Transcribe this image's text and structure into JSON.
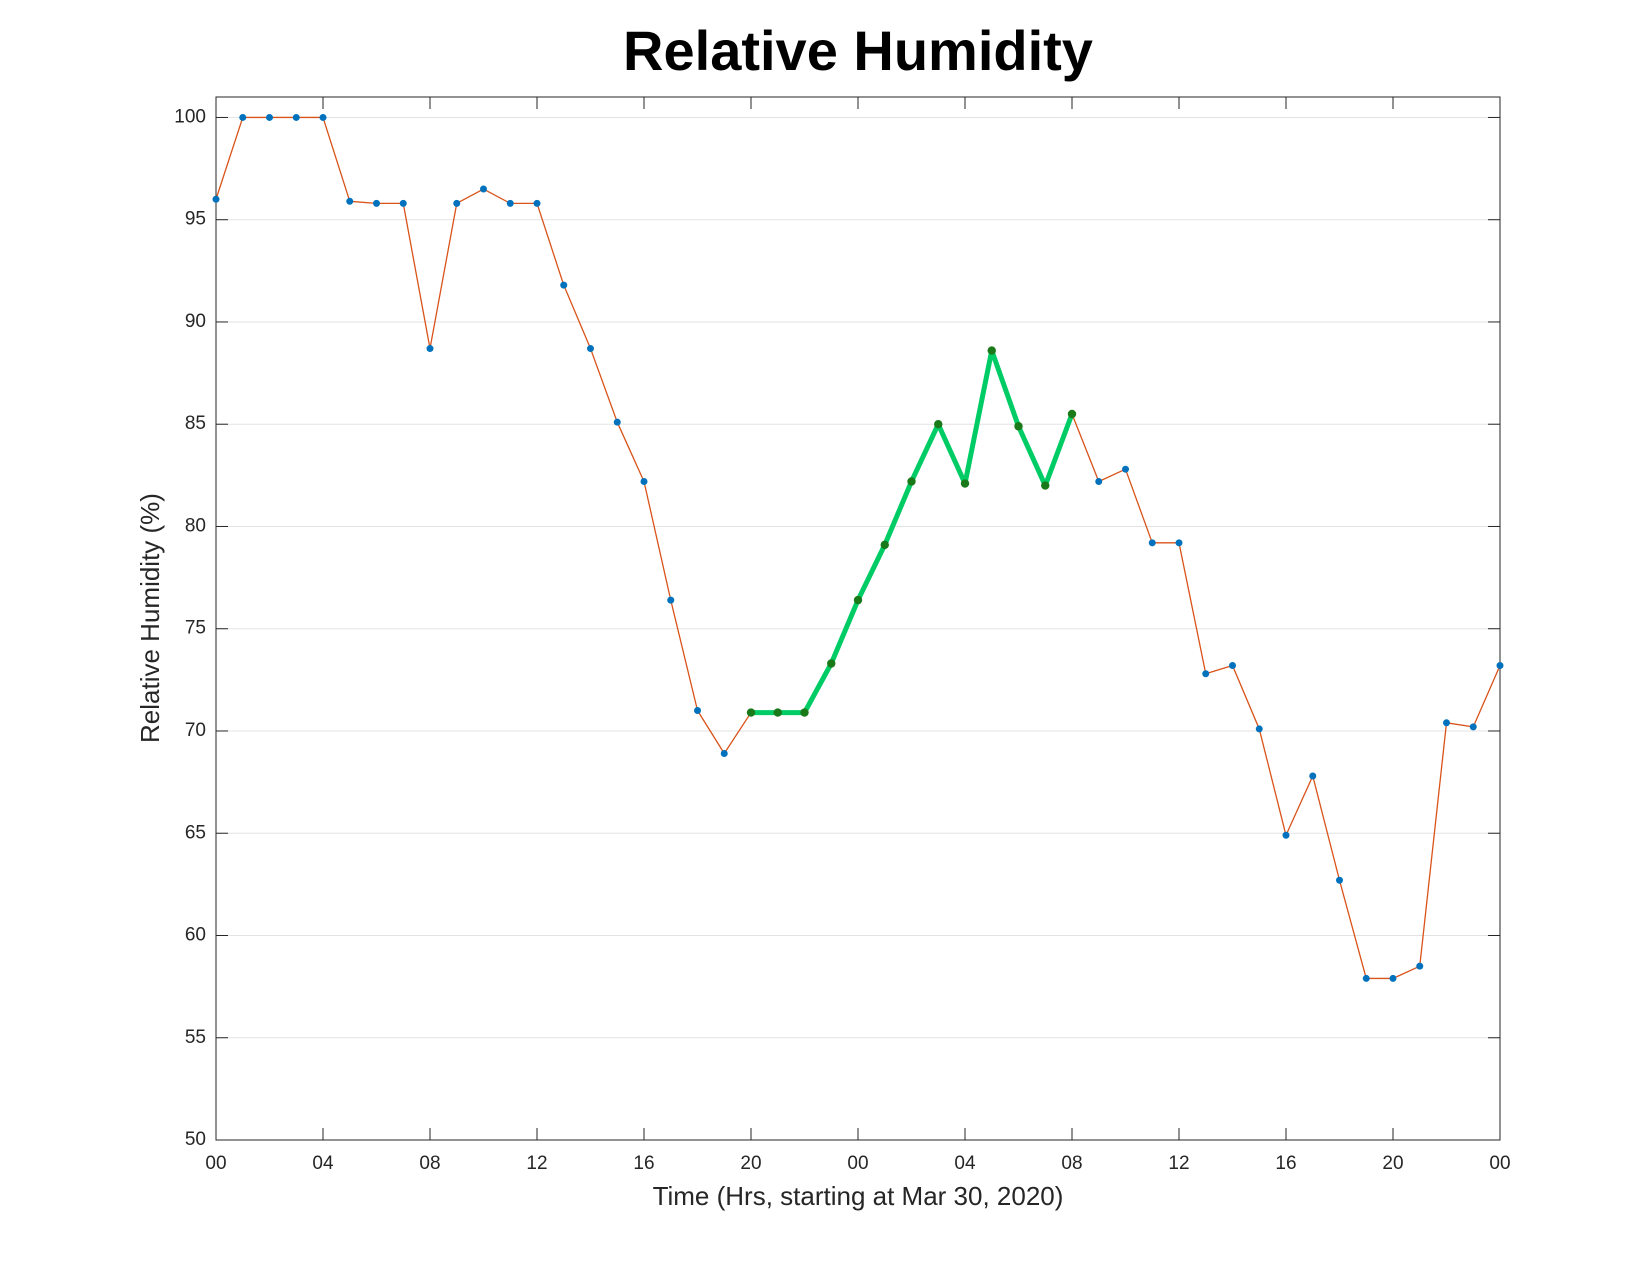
{
  "chart_data": {
    "type": "line",
    "title": "Relative Humidity",
    "xlabel": "Time (Hrs, starting at Mar 30, 2020)",
    "ylabel": "Relative Humidity (%)",
    "x": [
      0,
      1,
      2,
      3,
      4,
      5,
      6,
      7,
      8,
      9,
      10,
      11,
      12,
      13,
      14,
      15,
      16,
      17,
      18,
      19,
      20,
      21,
      22,
      23,
      24,
      25,
      26,
      27,
      28,
      29,
      30,
      31,
      32,
      33,
      34,
      35,
      36,
      37,
      38,
      39,
      40,
      41,
      42,
      43,
      44,
      45,
      46,
      47,
      48
    ],
    "series": [
      {
        "color": "#d95319",
        "marker_color": "#0072bd",
        "values": [
          96,
          100,
          100,
          100,
          100,
          95.9,
          95.8,
          95.8,
          88.7,
          95.8,
          96.5,
          95.8,
          95.8,
          91.8,
          88.7,
          85.1,
          82.2,
          76.4,
          71.0,
          68.9,
          70.9,
          70.9,
          70.9,
          73.3,
          76.4,
          79.1,
          82.2,
          85.0,
          82.1,
          88.6,
          84.9,
          82.0,
          85.5,
          82.2,
          82.8,
          79.2,
          79.2,
          72.8,
          73.2,
          70.1,
          64.9,
          67.8,
          62.7,
          57.9,
          57.9,
          58.5,
          70.4,
          70.2,
          73.2
        ]
      },
      {
        "color": "#00cc66",
        "marker_color": "#1a7a1a",
        "values": [
          null,
          null,
          null,
          null,
          null,
          null,
          null,
          null,
          null,
          null,
          null,
          null,
          null,
          null,
          null,
          null,
          null,
          null,
          null,
          null,
          70.9,
          70.9,
          70.9,
          73.3,
          76.4,
          79.1,
          82.2,
          85.0,
          82.1,
          88.6,
          84.9,
          82.0,
          85.5,
          null,
          null,
          null,
          null,
          null,
          null,
          null,
          null,
          null,
          null,
          null,
          null,
          null,
          null,
          null,
          null
        ]
      }
    ],
    "xlim": [
      0,
      48
    ],
    "xticks": [
      {
        "value": 0,
        "label": "00"
      },
      {
        "value": 4,
        "label": "04"
      },
      {
        "value": 8,
        "label": "08"
      },
      {
        "value": 12,
        "label": "12"
      },
      {
        "value": 16,
        "label": "16"
      },
      {
        "value": 20,
        "label": "20"
      },
      {
        "value": 24,
        "label": "00"
      },
      {
        "value": 28,
        "label": "04"
      },
      {
        "value": 32,
        "label": "08"
      },
      {
        "value": 36,
        "label": "12"
      },
      {
        "value": 40,
        "label": "16"
      },
      {
        "value": 44,
        "label": "20"
      },
      {
        "value": 48,
        "label": "00"
      }
    ],
    "ylim": [
      50,
      101
    ],
    "yticks": [
      50,
      55,
      60,
      65,
      70,
      75,
      80,
      85,
      90,
      95,
      100
    ],
    "grid": true
  }
}
